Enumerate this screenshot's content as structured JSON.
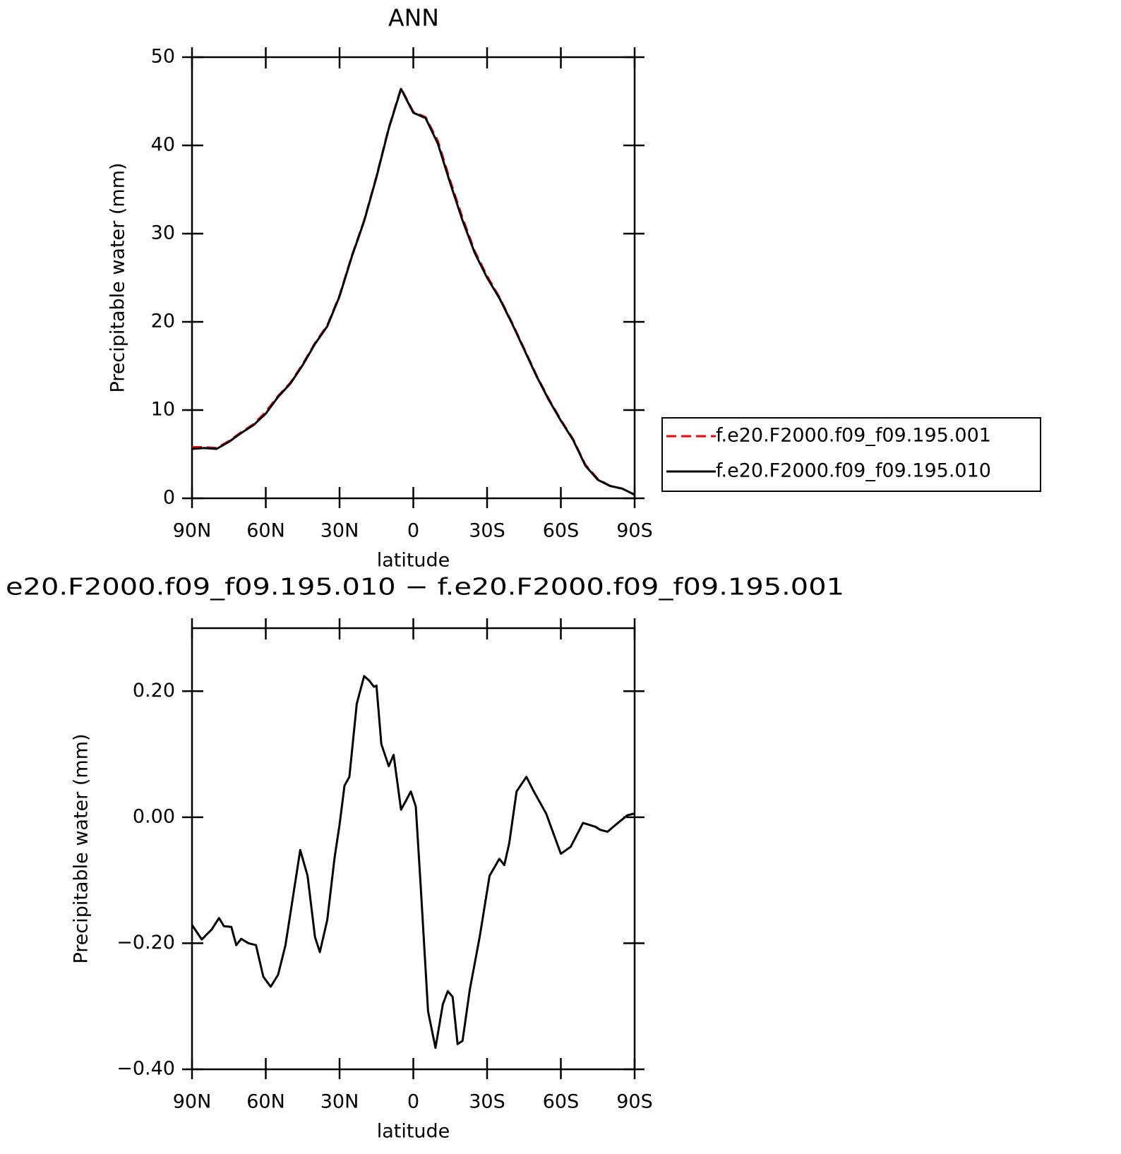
{
  "chart_data": [
    {
      "type": "line",
      "title": "ANN",
      "xlabel": "latitude",
      "ylabel": "Precipitable water (mm)",
      "x": [
        90,
        85,
        80,
        75,
        70,
        65,
        60,
        55,
        50,
        45,
        40,
        35,
        30,
        25,
        20,
        15,
        10,
        5,
        0,
        -5,
        -10,
        -15,
        -20,
        -25,
        -30,
        -35,
        -40,
        -45,
        -50,
        -55,
        -60,
        -65,
        -70,
        -75,
        -80,
        -85,
        -90
      ],
      "series": [
        {
          "name": "f.e20.F2000.f09_f09.195.001",
          "color": "#ff0000",
          "dash": "dashed",
          "values": [
            5.8,
            5.8,
            5.7,
            6.5,
            7.5,
            8.4,
            9.8,
            11.6,
            13.1,
            15.2,
            17.6,
            19.6,
            23.0,
            27.5,
            31.5,
            36.5,
            42.0,
            46.5,
            43.8,
            43.2,
            40.5,
            36.0,
            31.8,
            28.0,
            25.2,
            22.8,
            20.0,
            17.0,
            14.0,
            11.3,
            8.9,
            6.7,
            3.8,
            2.2,
            1.4,
            1.1,
            0.4
          ]
        },
        {
          "name": "f.e20.F2000.f09_f09.195.010",
          "color": "#000000",
          "dash": "solid",
          "values": [
            5.6,
            5.7,
            5.6,
            6.4,
            7.4,
            8.3,
            9.6,
            11.5,
            13.0,
            15.1,
            17.5,
            19.5,
            22.9,
            27.4,
            31.4,
            36.4,
            41.9,
            46.4,
            43.7,
            43.1,
            40.2,
            35.7,
            31.5,
            27.8,
            25.0,
            22.7,
            19.9,
            16.9,
            13.9,
            11.2,
            8.8,
            6.6,
            3.7,
            2.1,
            1.4,
            1.1,
            0.4
          ]
        }
      ],
      "xlim": [
        90,
        -90
      ],
      "xticks": [
        {
          "value": 90,
          "label": "90N"
        },
        {
          "value": 60,
          "label": "60N"
        },
        {
          "value": 30,
          "label": "30N"
        },
        0,
        {
          "value": -30,
          "label": "30S"
        },
        {
          "value": -60,
          "label": "60S"
        },
        {
          "value": -90,
          "label": "90S"
        }
      ],
      "ylim": [
        0,
        50
      ],
      "yticks": [
        0,
        10,
        20,
        30,
        40,
        50
      ],
      "legend": "right"
    },
    {
      "type": "line",
      "title": "e20.F2000.f09_f09.195.010 − f.e20.F2000.f09_f09.195.001",
      "xlabel": "latitude",
      "ylabel": "Precipitable water (mm)",
      "x": [
        90,
        86,
        82,
        79,
        77,
        74,
        72,
        70,
        67,
        64,
        61,
        58,
        55,
        52,
        49,
        46,
        43,
        40,
        38,
        35,
        32,
        30,
        28,
        26,
        23,
        20,
        18,
        16,
        15,
        13,
        10,
        8,
        5,
        3,
        1,
        -1,
        -3,
        -6,
        -9,
        -12,
        -14,
        -16,
        -18,
        -20,
        -23,
        -27,
        -31,
        -35,
        -37,
        -39,
        -42,
        -46,
        -49,
        -54,
        -60,
        -64,
        -69,
        -74,
        -76,
        -79,
        -82,
        -87,
        -90
      ],
      "series": [
        {
          "color": "#000000",
          "dash": "solid",
          "values": [
            -0.171,
            -0.194,
            -0.178,
            -0.16,
            -0.173,
            -0.174,
            -0.203,
            -0.193,
            -0.2,
            -0.203,
            -0.253,
            -0.269,
            -0.25,
            -0.203,
            -0.128,
            -0.052,
            -0.093,
            -0.19,
            -0.214,
            -0.163,
            -0.064,
            -0.012,
            0.05,
            0.064,
            0.18,
            0.224,
            0.217,
            0.207,
            0.209,
            0.116,
            0.081,
            0.099,
            0.012,
            0.026,
            0.041,
            0.017,
            -0.11,
            -0.308,
            -0.366,
            -0.297,
            -0.276,
            -0.285,
            -0.36,
            -0.355,
            -0.273,
            -0.19,
            -0.093,
            -0.066,
            -0.076,
            -0.041,
            0.041,
            0.064,
            0.041,
            0.006,
            -0.058,
            -0.047,
            -0.009,
            -0.015,
            -0.02,
            -0.023,
            -0.013,
            0.003,
            0.006
          ]
        }
      ],
      "xlim": [
        90,
        -90
      ],
      "xticks": [
        {
          "value": 90,
          "label": "90N"
        },
        {
          "value": 60,
          "label": "60N"
        },
        {
          "value": 30,
          "label": "30N"
        },
        0,
        {
          "value": -30,
          "label": "30S"
        },
        {
          "value": -60,
          "label": "60S"
        },
        {
          "value": -90,
          "label": "90S"
        }
      ],
      "ylim": [
        -0.4,
        0.3
      ],
      "yticks": [
        {
          "value": -0.4,
          "label": "−0.40"
        },
        {
          "value": -0.2,
          "label": "−0.20"
        },
        {
          "value": 0,
          "label": "0.00"
        },
        {
          "value": 0.2,
          "label": "0.20"
        }
      ]
    }
  ]
}
